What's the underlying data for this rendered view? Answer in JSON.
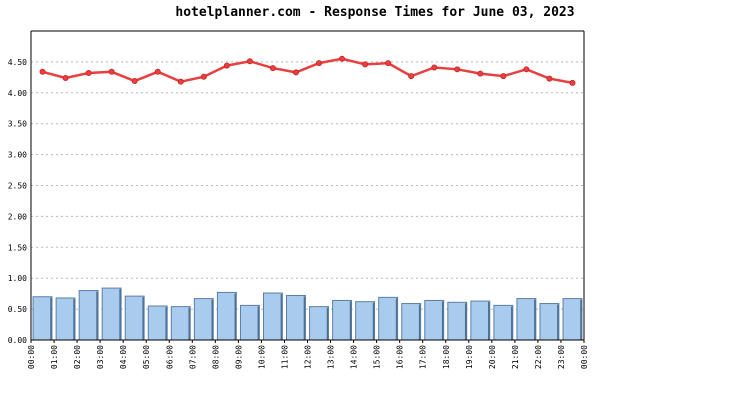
{
  "chart_data": {
    "type": "bar+line",
    "title": "hotelplanner.com - Response Times for June 03, 2023",
    "xlabel": "",
    "ylabel": "",
    "ylim": [
      0,
      5
    ],
    "y_ticks": [
      "0.00",
      "0.50",
      "1.00",
      "1.50",
      "2.00",
      "2.50",
      "3.00",
      "3.50",
      "4.00",
      "4.50"
    ],
    "y_tick_values": [
      0,
      0.5,
      1,
      1.5,
      2,
      2.5,
      3,
      3.5,
      4,
      4.5
    ],
    "x_ticks": [
      "00:00",
      "01:00",
      "02:00",
      "03:00",
      "04:00",
      "05:00",
      "06:00",
      "07:00",
      "08:00",
      "09:00",
      "10:00",
      "11:00",
      "12:00",
      "13:00",
      "14:00",
      "15:00",
      "16:00",
      "17:00",
      "18:00",
      "19:00",
      "20:00",
      "21:00",
      "22:00",
      "23:00",
      "00:00"
    ],
    "grid": true,
    "series": [
      {
        "type": "bar",
        "color": "#a9cbee",
        "values": [
          0.7,
          0.68,
          0.8,
          0.84,
          0.71,
          0.55,
          0.54,
          0.67,
          0.77,
          0.56,
          0.76,
          0.72,
          0.54,
          0.64,
          0.62,
          0.69,
          0.59,
          0.64,
          0.61,
          0.63,
          0.56,
          0.67,
          0.59,
          0.67
        ]
      },
      {
        "type": "line",
        "color": "#e84040",
        "values": [
          4.34,
          4.24,
          4.32,
          4.34,
          4.19,
          4.34,
          4.18,
          4.26,
          4.44,
          4.51,
          4.4,
          4.33,
          4.48,
          4.55,
          4.46,
          4.48,
          4.27,
          4.41,
          4.38,
          4.31,
          4.27,
          4.38,
          4.23,
          4.16
        ]
      }
    ]
  }
}
